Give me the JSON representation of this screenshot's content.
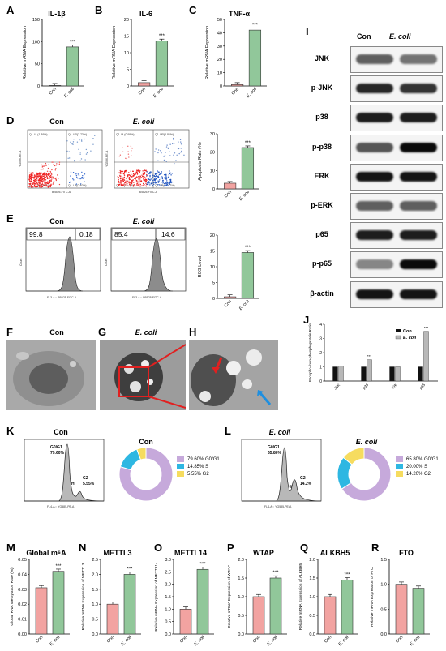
{
  "colors": {
    "con": "#f2a3a1",
    "ecoli": "#91c79a",
    "wb_bg": "#f4f4f4",
    "donut_g0": "#c6a9db",
    "donut_s": "#2eb7e2",
    "donut_g2": "#f6dc5f"
  },
  "panels": {
    "A": "A",
    "B": "B",
    "C": "C",
    "D": "D",
    "E": "E",
    "F": "F",
    "G": "G",
    "H": "H",
    "I": "I",
    "J": "J",
    "K": "K",
    "L": "L",
    "M": "M",
    "N": "N",
    "O": "O",
    "P": "P",
    "Q": "Q",
    "R": "R"
  },
  "top": {
    "A": {
      "title": "IL-1β",
      "ylabel": "Relative mRNA Expression",
      "ticks": [
        "0",
        "50",
        "100",
        "150"
      ],
      "max": 150,
      "values": [
        0.5,
        88
      ],
      "cats": [
        "Con",
        "E. coli"
      ],
      "sig": "***"
    },
    "B": {
      "title": "IL-6",
      "ylabel": "Relative mRNA Expression",
      "ticks": [
        "0",
        "5",
        "10",
        "15",
        "20"
      ],
      "max": 20,
      "values": [
        1,
        13.5
      ],
      "cats": [
        "Con",
        "E. coli"
      ],
      "sig": "***"
    },
    "C": {
      "title": "TNF-α",
      "ylabel": "Relative mRNA Expression",
      "ticks": [
        "0",
        "10",
        "20",
        "30",
        "40",
        "50"
      ],
      "max": 50,
      "values": [
        1,
        42
      ],
      "cats": [
        "Con",
        "E. coli"
      ],
      "sig": "***"
    }
  },
  "D": {
    "con_title": "Con",
    "ecoli_title": "E. coli",
    "con_quads": [
      "Q1-UL(1.39%)",
      "Q1-UR(2.73%)",
      "Q1-LL(95.37%)",
      "Q1-LR(0.40%)"
    ],
    "ecoli_quads": [
      "Q1-UL(0.95%)",
      "Q1-UR(2.86%)",
      "Q1-LL(76.32%)",
      "Q1-LR(19.87%)"
    ],
    "xaxis": "BB525-FITC-A",
    "yaxis": "YG586-PE-A",
    "bar": {
      "ylabel": "Apoptosis Rate (%)",
      "ticks": [
        "0",
        "10",
        "20",
        "30"
      ],
      "max": 30,
      "values": [
        3.1,
        22.5
      ],
      "cats": [
        "Con",
        "E. coli"
      ],
      "sig": "***"
    }
  },
  "E": {
    "con_title": "Con",
    "ecoli_title": "E. coli",
    "con_gates": [
      "99.8",
      "0.18"
    ],
    "ecoli_gates": [
      "85.4",
      "14.6"
    ],
    "xaxis": "FL3-A :: BB525-FITC-A",
    "yaxis": "Count",
    "bar": {
      "ylabel": "ROS Level",
      "ticks": [
        "0",
        "5",
        "10",
        "15",
        "20"
      ],
      "max": 20,
      "values": [
        0.5,
        14.5
      ],
      "cats": [
        "Con",
        "E. coli"
      ],
      "sig": "***"
    }
  },
  "F": {
    "title": "Con"
  },
  "G": {
    "title": "E. coli"
  },
  "I": {
    "cols": [
      "Con",
      "E. coli"
    ],
    "rows": [
      "JNK",
      "p-JNK",
      "p38",
      "p-p38",
      "ERK",
      "p-ERK",
      "p65",
      "p-p65",
      "β-actin"
    ],
    "intensity": [
      [
        0.55,
        0.45
      ],
      [
        0.85,
        0.78
      ],
      [
        0.9,
        0.9
      ],
      [
        0.6,
        1.0
      ],
      [
        0.95,
        0.95
      ],
      [
        0.55,
        0.55
      ],
      [
        0.9,
        0.9
      ],
      [
        0.35,
        1.0
      ],
      [
        0.95,
        0.95
      ]
    ]
  },
  "J": {
    "ylabel": "Phospho-/non-phosphoprotein Ratio",
    "legend": [
      "Con",
      "E. coli"
    ],
    "ticks": [
      "0",
      "1",
      "2",
      "3",
      "4"
    ],
    "max": 4,
    "cats": [
      "JNK",
      "p38",
      "Erk",
      "p65"
    ],
    "series": [
      {
        "name": "Con",
        "values": [
          1.0,
          1.0,
          1.0,
          1.0
        ]
      },
      {
        "name": "E. coli",
        "values": [
          1.05,
          1.5,
          1.0,
          3.5
        ]
      }
    ],
    "sig": [
      "",
      "***",
      "",
      "***"
    ]
  },
  "K": {
    "title": "Con",
    "donut_title": "Con",
    "peaks": [
      "G0/G1",
      "79.60%",
      "H",
      "G2",
      "5.55%"
    ],
    "xaxis": "FL4-A :: YG585-PE-A",
    "legend": [
      "79.60%  G0/G1",
      "14.85%  S",
      "5.55%  G2"
    ],
    "values": [
      79.6,
      14.85,
      5.55
    ]
  },
  "L": {
    "title": "E. coli",
    "donut_title": "E. coli",
    "peaks": [
      "G0/G1",
      "65.80%",
      "H",
      "G2",
      "14.2%"
    ],
    "xaxis": "FL4-A :: YG585-PE-A",
    "legend": [
      "65.80%  G0/G1",
      "20.00%  S",
      "14.20%  G2"
    ],
    "values": [
      65.8,
      20.0,
      14.2
    ]
  },
  "bottom": {
    "M": {
      "title": "Global m⁶A",
      "ylabel": "Global RNA Methylation Rate (%)",
      "ticks": [
        "0.00",
        "0.01",
        "0.02",
        "0.03",
        "0.04",
        "0.05"
      ],
      "max": 0.05,
      "values": [
        0.031,
        0.042
      ],
      "cats": [
        "Con",
        "E. coli"
      ],
      "sig": "***"
    },
    "N": {
      "title": "METTL3",
      "ylabel": "Relative mRNA Expression of METTL3",
      "ticks": [
        "0.0",
        "0.5",
        "1.0",
        "1.5",
        "2.0",
        "2.5"
      ],
      "max": 2.5,
      "values": [
        1.0,
        2.0
      ],
      "cats": [
        "Con",
        "E. coli"
      ],
      "sig": "***"
    },
    "O": {
      "title": "METTL14",
      "ylabel": "Relative mRNA Expression of METTL14",
      "ticks": [
        "0.0",
        "0.5",
        "1.0",
        "1.5",
        "2.0",
        "2.5",
        "3.0"
      ],
      "max": 3.0,
      "values": [
        1.0,
        2.6
      ],
      "cats": [
        "Con",
        "E. coli"
      ],
      "sig": "***"
    },
    "P": {
      "title": "WTAP",
      "ylabel": "Relative mRNA Expression of WTAP",
      "ticks": [
        "0.0",
        "0.5",
        "1.0",
        "1.5",
        "2.0"
      ],
      "max": 2.0,
      "values": [
        1.0,
        1.5
      ],
      "cats": [
        "Con",
        "E. coli"
      ],
      "sig": "***"
    },
    "Q": {
      "title": "ALKBH5",
      "ylabel": "Relative mRNA Expression of ALKBH5",
      "ticks": [
        "0.0",
        "0.5",
        "1.0",
        "1.5",
        "2.0"
      ],
      "max": 2.0,
      "values": [
        1.0,
        1.45
      ],
      "cats": [
        "Con",
        "E. coli"
      ],
      "sig": "***"
    },
    "R": {
      "title": "FTO",
      "ylabel": "Relative mRNA Expression of FTO",
      "ticks": [
        "0.0",
        "0.5",
        "1.0",
        "1.5"
      ],
      "max": 1.5,
      "values": [
        1.0,
        0.92
      ],
      "cats": [
        "Con",
        "E. coli"
      ],
      "sig": ""
    }
  },
  "chart_data": [
    {
      "type": "bar",
      "title": "IL-1β",
      "ylabel": "Relative mRNA Expression",
      "categories": [
        "Con",
        "E. coli"
      ],
      "values": [
        0.5,
        88
      ],
      "ylim": [
        0,
        150
      ]
    },
    {
      "type": "bar",
      "title": "IL-6",
      "ylabel": "Relative mRNA Expression",
      "categories": [
        "Con",
        "E. coli"
      ],
      "values": [
        1,
        13.5
      ],
      "ylim": [
        0,
        20
      ]
    },
    {
      "type": "bar",
      "title": "TNF-α",
      "ylabel": "Relative mRNA Expression",
      "categories": [
        "Con",
        "E. coli"
      ],
      "values": [
        1,
        42
      ],
      "ylim": [
        0,
        50
      ]
    },
    {
      "type": "bar",
      "ylabel": "Apoptosis Rate (%)",
      "categories": [
        "Con",
        "E. coli"
      ],
      "values": [
        3.1,
        22.5
      ],
      "ylim": [
        0,
        30
      ]
    },
    {
      "type": "bar",
      "ylabel": "ROS Level",
      "categories": [
        "Con",
        "E. coli"
      ],
      "values": [
        0.5,
        14.5
      ],
      "ylim": [
        0,
        20
      ]
    },
    {
      "type": "bar",
      "ylabel": "Phospho-/non-phosphoprotein Ratio",
      "categories": [
        "JNK",
        "p38",
        "Erk",
        "p65"
      ],
      "series": [
        {
          "name": "Con",
          "values": [
            1.0,
            1.0,
            1.0,
            1.0
          ]
        },
        {
          "name": "E. coli",
          "values": [
            1.05,
            1.5,
            1.0,
            3.5
          ]
        }
      ],
      "ylim": [
        0,
        4
      ]
    },
    {
      "type": "pie",
      "title": "Con",
      "categories": [
        "G0/G1",
        "S",
        "G2"
      ],
      "values": [
        79.6,
        14.85,
        5.55
      ]
    },
    {
      "type": "pie",
      "title": "E. coli",
      "categories": [
        "G0/G1",
        "S",
        "G2"
      ],
      "values": [
        65.8,
        20.0,
        14.2
      ]
    },
    {
      "type": "bar",
      "title": "Global m⁶A",
      "ylabel": "Global RNA Methylation Rate (%)",
      "categories": [
        "Con",
        "E. coli"
      ],
      "values": [
        0.031,
        0.042
      ],
      "ylim": [
        0,
        0.05
      ]
    },
    {
      "type": "bar",
      "title": "METTL3",
      "categories": [
        "Con",
        "E. coli"
      ],
      "values": [
        1.0,
        2.0
      ],
      "ylim": [
        0,
        2.5
      ]
    },
    {
      "type": "bar",
      "title": "METTL14",
      "categories": [
        "Con",
        "E. coli"
      ],
      "values": [
        1.0,
        2.6
      ],
      "ylim": [
        0,
        3.0
      ]
    },
    {
      "type": "bar",
      "title": "WTAP",
      "categories": [
        "Con",
        "E. coli"
      ],
      "values": [
        1.0,
        1.5
      ],
      "ylim": [
        0,
        2.0
      ]
    },
    {
      "type": "bar",
      "title": "ALKBH5",
      "categories": [
        "Con",
        "E. coli"
      ],
      "values": [
        1.0,
        1.45
      ],
      "ylim": [
        0,
        2.0
      ]
    },
    {
      "type": "bar",
      "title": "FTO",
      "categories": [
        "Con",
        "E. coli"
      ],
      "values": [
        1.0,
        0.92
      ],
      "ylim": [
        0,
        1.5
      ]
    }
  ]
}
